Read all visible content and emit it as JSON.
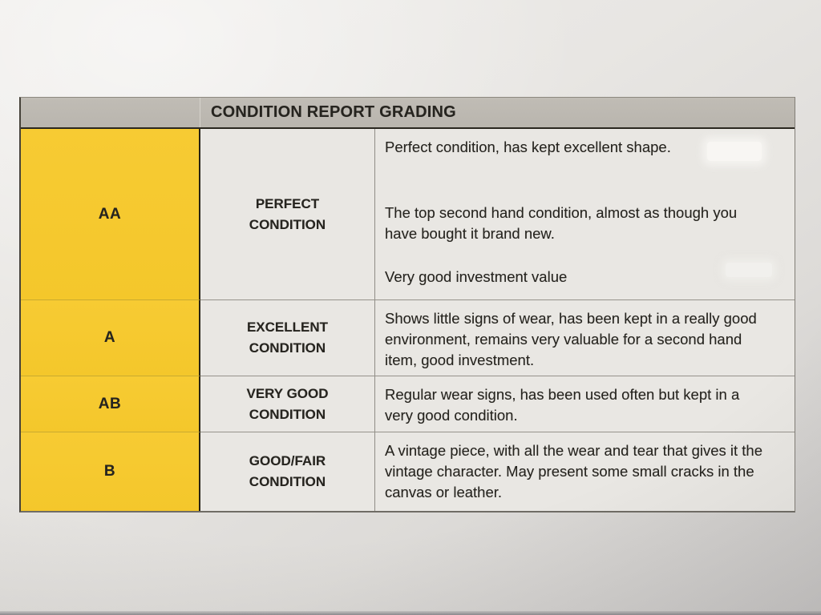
{
  "table": {
    "title": "CONDITION REPORT GRADING",
    "rows": [
      {
        "grade": "AA",
        "condition": "PERFECT CONDITION",
        "paragraphs": [
          "Perfect condition, has kept excellent shape.",
          "The top second hand condition, almost as though you have bought it brand new.",
          "Very good investment value"
        ]
      },
      {
        "grade": "A",
        "condition": "EXCELLENT CONDITION",
        "paragraphs": [
          "Shows little signs of wear, has been kept in a really good environment, remains very valuable for a second hand item, good investment."
        ]
      },
      {
        "grade": "AB",
        "condition": "VERY GOOD CONDITION",
        "paragraphs": [
          "Regular wear signs, has been used often but kept in a very good condition."
        ]
      },
      {
        "grade": "B",
        "condition": "GOOD/FAIR CONDITION",
        "paragraphs": [
          "A vintage piece, with all the wear and tear that gives it the vintage character. May present some small cracks in the canvas or leather."
        ]
      }
    ]
  },
  "colors": {
    "grade_cell_yellow": "#F6C930",
    "header_band_gray": "#BDB9B1",
    "paper": "#E9E7E3",
    "text": "#26241F"
  }
}
